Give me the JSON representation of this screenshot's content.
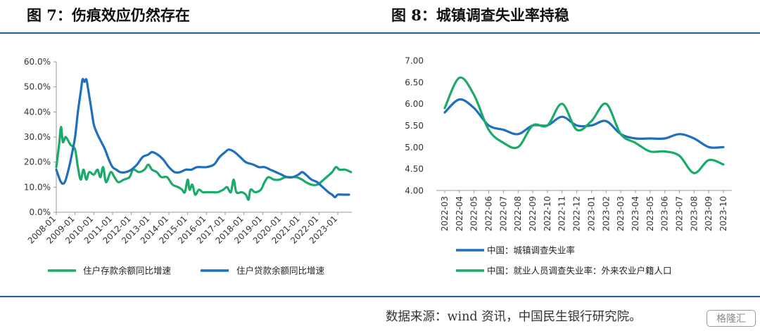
{
  "titles": {
    "left": "图 7：伤痕效应仍然存在",
    "right": "图 8：城镇调查失业率持稳"
  },
  "source_note": "数据来源：wind 资讯，中国民生银行研究院。",
  "watermark": "格隆汇",
  "colors": {
    "green": "#1aab6a",
    "blue": "#1e6fbe",
    "rule": "#1f5fa8"
  },
  "chart_data": [
    {
      "type": "line",
      "x": [
        "2008-01",
        "2009-01",
        "2010-01",
        "2011-01",
        "2012-01",
        "2013-01",
        "2014-01",
        "2015-01",
        "2016-01",
        "2017-01",
        "2018-01",
        "2019-01",
        "2020-01",
        "2021-01",
        "2022-01",
        "2023-01"
      ],
      "y_ticks": [
        "0.0%",
        "10.0%",
        "20.0%",
        "30.0%",
        "40.0%",
        "50.0%",
        "60.0%"
      ],
      "ylim": [
        0,
        60
      ],
      "grid": false,
      "legend_position": "bottom",
      "series": [
        {
          "name": "住户存款余额同比增速",
          "color": "#1aab6a",
          "points": [
            [
              2008.0,
              18
            ],
            [
              2008.15,
              27
            ],
            [
              2008.25,
              34
            ],
            [
              2008.35,
              28
            ],
            [
              2008.5,
              30
            ],
            [
              2008.75,
              27
            ],
            [
              2009.0,
              25
            ],
            [
              2009.15,
              18
            ],
            [
              2009.3,
              13
            ],
            [
              2009.45,
              17
            ],
            [
              2009.6,
              13
            ],
            [
              2009.75,
              16
            ],
            [
              2010.0,
              15
            ],
            [
              2010.2,
              17
            ],
            [
              2010.35,
              14
            ],
            [
              2010.5,
              18
            ],
            [
              2010.65,
              12
            ],
            [
              2010.9,
              16
            ],
            [
              2011.1,
              14
            ],
            [
              2011.3,
              12
            ],
            [
              2011.6,
              13
            ],
            [
              2011.9,
              14
            ],
            [
              2012.1,
              17
            ],
            [
              2012.4,
              16
            ],
            [
              2012.7,
              17
            ],
            [
              2012.9,
              19
            ],
            [
              2013.1,
              17
            ],
            [
              2013.35,
              16
            ],
            [
              2013.6,
              14
            ],
            [
              2013.9,
              14
            ],
            [
              2014.2,
              11
            ],
            [
              2014.5,
              10
            ],
            [
              2014.7,
              9
            ],
            [
              2014.85,
              8
            ],
            [
              2015.0,
              13
            ],
            [
              2015.1,
              9
            ],
            [
              2015.25,
              11
            ],
            [
              2015.4,
              7
            ],
            [
              2015.6,
              9
            ],
            [
              2015.8,
              8
            ],
            [
              2016.0,
              8
            ],
            [
              2016.3,
              8
            ],
            [
              2016.6,
              8
            ],
            [
              2016.9,
              9
            ],
            [
              2017.1,
              10
            ],
            [
              2017.3,
              8
            ],
            [
              2017.45,
              13
            ],
            [
              2017.6,
              8
            ],
            [
              2017.9,
              8
            ],
            [
              2018.1,
              7
            ],
            [
              2018.25,
              5
            ],
            [
              2018.35,
              9
            ],
            [
              2018.6,
              8
            ],
            [
              2018.9,
              9
            ],
            [
              2019.1,
              12
            ],
            [
              2019.3,
              14
            ],
            [
              2019.6,
              13
            ],
            [
              2019.9,
              13
            ],
            [
              2020.2,
              14
            ],
            [
              2020.5,
              14
            ],
            [
              2020.8,
              14
            ],
            [
              2021.1,
              13
            ],
            [
              2021.3,
              12
            ],
            [
              2021.6,
              11
            ],
            [
              2021.9,
              11
            ],
            [
              2022.1,
              12
            ],
            [
              2022.4,
              14
            ],
            [
              2022.7,
              16
            ],
            [
              2022.9,
              18
            ],
            [
              2023.1,
              17
            ],
            [
              2023.4,
              17
            ],
            [
              2023.7,
              16
            ]
          ]
        },
        {
          "name": "住户贷款余额同比增速",
          "color": "#1e6fbe",
          "points": [
            [
              2008.0,
              17
            ],
            [
              2008.25,
              12
            ],
            [
              2008.45,
              12
            ],
            [
              2008.65,
              17
            ],
            [
              2008.8,
              22
            ],
            [
              2009.0,
              30
            ],
            [
              2009.15,
              40
            ],
            [
              2009.3,
              48
            ],
            [
              2009.4,
              53
            ],
            [
              2009.5,
              52
            ],
            [
              2009.6,
              53
            ],
            [
              2009.7,
              49
            ],
            [
              2009.85,
              42
            ],
            [
              2010.0,
              35
            ],
            [
              2010.2,
              31
            ],
            [
              2010.4,
              28
            ],
            [
              2010.6,
              25
            ],
            [
              2010.8,
              21
            ],
            [
              2011.0,
              18
            ],
            [
              2011.2,
              17
            ],
            [
              2011.4,
              16
            ],
            [
              2011.7,
              16
            ],
            [
              2012.0,
              17
            ],
            [
              2012.3,
              19
            ],
            [
              2012.6,
              22
            ],
            [
              2012.9,
              23
            ],
            [
              2013.1,
              24
            ],
            [
              2013.4,
              23
            ],
            [
              2013.7,
              21
            ],
            [
              2014.0,
              18
            ],
            [
              2014.3,
              16
            ],
            [
              2014.6,
              16
            ],
            [
              2014.9,
              17
            ],
            [
              2015.2,
              17
            ],
            [
              2015.5,
              18
            ],
            [
              2016.0,
              18
            ],
            [
              2016.4,
              19
            ],
            [
              2016.7,
              22
            ],
            [
              2017.0,
              24
            ],
            [
              2017.2,
              25
            ],
            [
              2017.5,
              24
            ],
            [
              2017.8,
              22
            ],
            [
              2018.1,
              20
            ],
            [
              2018.5,
              19
            ],
            [
              2018.8,
              18
            ],
            [
              2019.1,
              18
            ],
            [
              2019.4,
              17
            ],
            [
              2019.7,
              16
            ],
            [
              2020.0,
              15
            ],
            [
              2020.3,
              14
            ],
            [
              2020.6,
              14
            ],
            [
              2020.9,
              15
            ],
            [
              2021.1,
              16
            ],
            [
              2021.3,
              15
            ],
            [
              2021.6,
              13
            ],
            [
              2021.9,
              12
            ],
            [
              2022.2,
              10
            ],
            [
              2022.5,
              8
            ],
            [
              2022.7,
              7
            ],
            [
              2022.85,
              6
            ],
            [
              2023.0,
              7
            ],
            [
              2023.3,
              7
            ],
            [
              2023.6,
              7
            ]
          ]
        }
      ]
    },
    {
      "type": "line",
      "categories": [
        "2022-03",
        "2022-04",
        "2022-05",
        "2022-06",
        "2022-07",
        "2022-08",
        "2022-09",
        "2022-10",
        "2022-11",
        "2022-12",
        "2023-01",
        "2023-02",
        "2023-03",
        "2023-04",
        "2023-05",
        "2023-06",
        "2023-07",
        "2023-08",
        "2023-09",
        "2023-10"
      ],
      "y_ticks": [
        "4.00",
        "4.50",
        "5.00",
        "5.50",
        "6.00",
        "6.50",
        "7.00"
      ],
      "ylim": [
        4.0,
        7.0
      ],
      "grid": false,
      "legend_position": "bottom",
      "series": [
        {
          "name": "中国：城镇调查失业率",
          "color": "#1e6fbe",
          "values": [
            5.8,
            6.1,
            5.9,
            5.5,
            5.4,
            5.3,
            5.5,
            5.5,
            5.7,
            5.5,
            5.5,
            5.6,
            5.3,
            5.2,
            5.2,
            5.2,
            5.3,
            5.2,
            5.0,
            5.0
          ]
        },
        {
          "name": "中国：就业人员调查失业率：外来农业户籍人口",
          "color": "#1aab6a",
          "values": [
            5.9,
            6.6,
            6.2,
            5.4,
            5.1,
            5.0,
            5.5,
            5.5,
            6.0,
            5.4,
            5.6,
            6.0,
            5.3,
            5.1,
            4.9,
            4.9,
            4.8,
            4.4,
            4.7,
            4.6
          ]
        }
      ]
    }
  ]
}
